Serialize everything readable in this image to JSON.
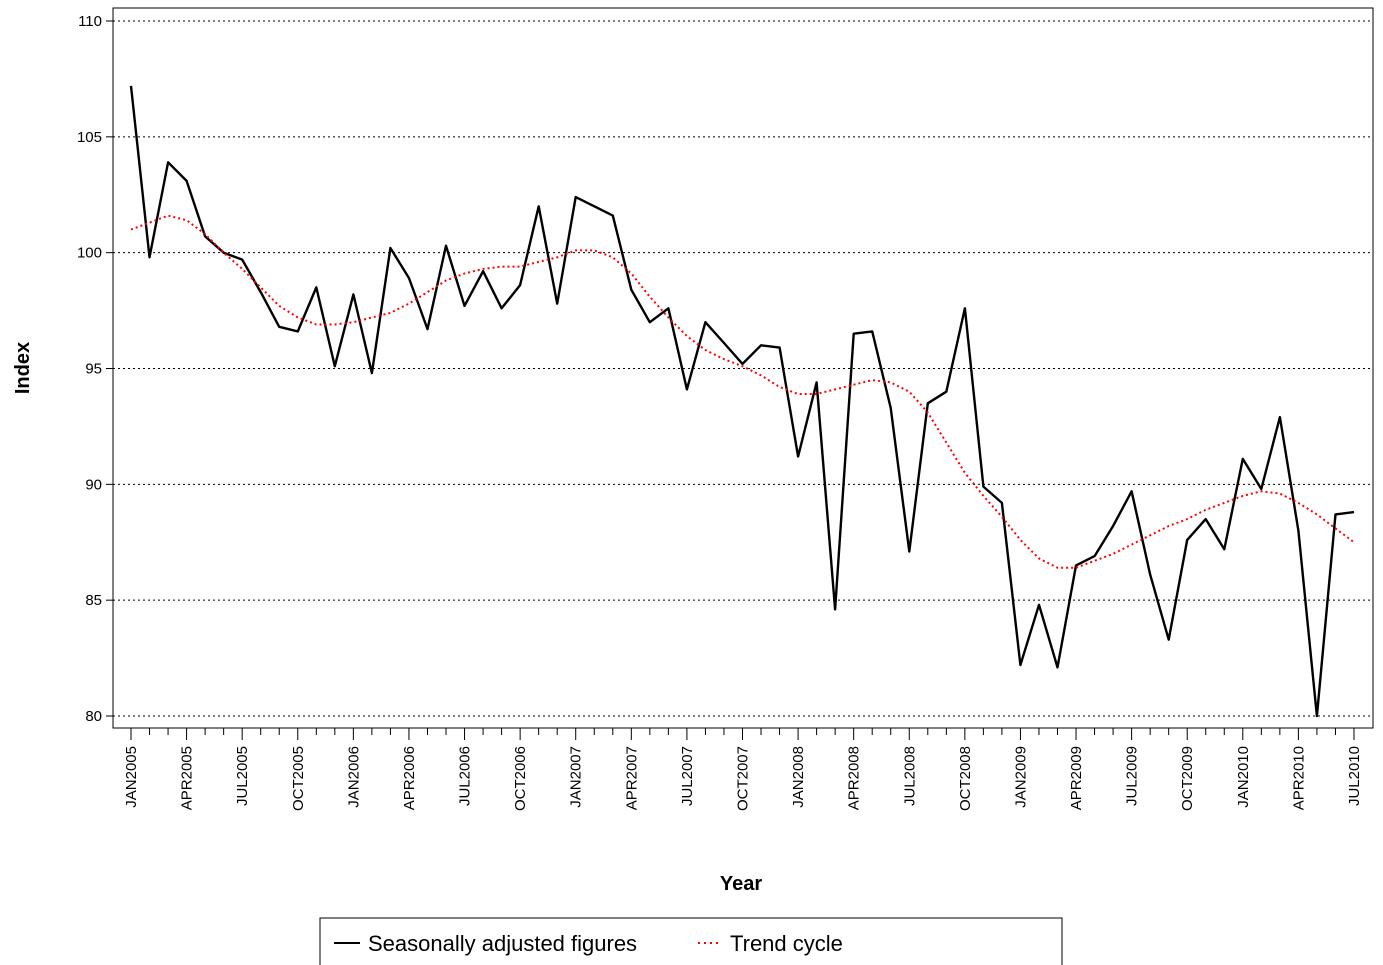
{
  "chart_data": {
    "type": "line",
    "xlabel": "Year",
    "ylabel": "Index",
    "ylim": [
      80,
      110
    ],
    "yticks": [
      80,
      85,
      90,
      95,
      100,
      105,
      110
    ],
    "xlim": [
      0,
      66
    ],
    "xtick_labels": [
      "JAN2005",
      "APR2005",
      "JUL2005",
      "OCT2005",
      "JAN2006",
      "APR2006",
      "JUL2006",
      "OCT2006",
      "JAN2007",
      "APR2007",
      "JUL2007",
      "OCT2007",
      "JAN2008",
      "APR2008",
      "JUL2008",
      "OCT2008",
      "JAN2009",
      "APR2009",
      "JUL2009",
      "OCT2009",
      "JAN2010",
      "APR2010",
      "JUL2010"
    ],
    "grid": "horizontal dotted",
    "legend_position": "bottom",
    "series": [
      {
        "name": "Seasonally adjusted figures",
        "color": "#000000",
        "style": "solid",
        "values": [
          107.2,
          99.8,
          103.9,
          103.1,
          100.7,
          100.0,
          99.7,
          98.3,
          96.8,
          96.6,
          98.5,
          95.1,
          98.2,
          94.8,
          100.2,
          98.9,
          96.7,
          100.3,
          97.7,
          99.2,
          97.6,
          98.6,
          102.0,
          97.8,
          102.4,
          102.0,
          101.6,
          98.4,
          97.0,
          97.6,
          94.1,
          97.0,
          96.1,
          95.2,
          96.0,
          95.9,
          91.2,
          94.4,
          84.6,
          96.5,
          96.6,
          93.3,
          87.1,
          93.5,
          94.0,
          97.6,
          89.9,
          89.2,
          82.2,
          84.8,
          82.1,
          86.5,
          86.9,
          88.2,
          89.7,
          86.1,
          83.3,
          87.6,
          88.5,
          87.2,
          91.1,
          89.8,
          92.9,
          88.0,
          80.0,
          88.7,
          88.8
        ]
      },
      {
        "name": "Trend cycle",
        "color": "#ff0000",
        "style": "dotted",
        "values": [
          101.0,
          101.3,
          101.6,
          101.4,
          100.8,
          100.0,
          99.3,
          98.5,
          97.7,
          97.2,
          96.9,
          96.9,
          97.0,
          97.2,
          97.4,
          97.8,
          98.3,
          98.8,
          99.1,
          99.3,
          99.4,
          99.4,
          99.6,
          99.8,
          100.1,
          100.1,
          99.8,
          99.1,
          98.1,
          97.2,
          96.4,
          95.8,
          95.4,
          95.1,
          94.7,
          94.2,
          93.9,
          93.9,
          94.1,
          94.3,
          94.5,
          94.4,
          94.0,
          93.1,
          91.8,
          90.5,
          89.5,
          88.6,
          87.6,
          86.8,
          86.4,
          86.4,
          86.7,
          87.0,
          87.4,
          87.8,
          88.2,
          88.5,
          88.9,
          89.2,
          89.5,
          89.7,
          89.6,
          89.2,
          88.7,
          88.1,
          87.5
        ]
      }
    ]
  }
}
